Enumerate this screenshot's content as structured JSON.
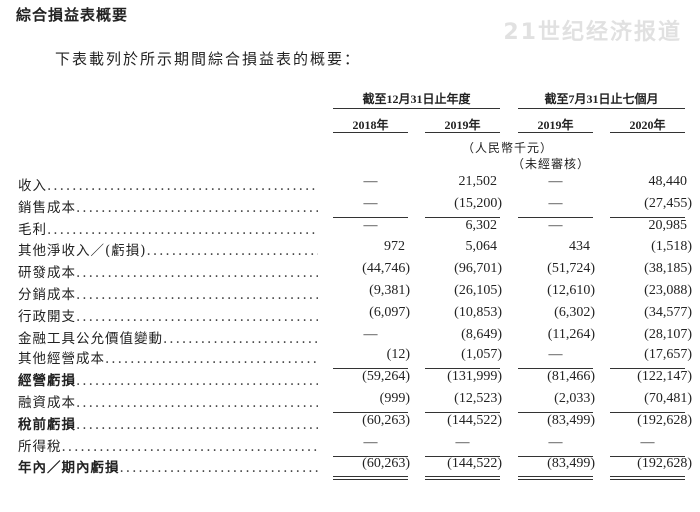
{
  "title": "綜合損益表概要",
  "intro": "下表載列於所示期間綜合損益表的概要：",
  "periods": [
    "截至12月31日止年度",
    "截至7月31日止七個月"
  ],
  "years": [
    "2018年",
    "2019年",
    "2019年",
    "2020年"
  ],
  "unit": "（人民幣千元）",
  "unaudited": "（未經審核）",
  "dots": "............................................",
  "rows": [
    {
      "label": "收入",
      "values": [
        "—",
        "21,502",
        "—",
        "48,440"
      ],
      "bold": false,
      "rule": "none"
    },
    {
      "label": "銷售成本",
      "values": [
        "—",
        "(15,200)",
        "—",
        "(27,455)"
      ],
      "bold": false,
      "rule": "single"
    },
    {
      "label": "毛利",
      "values": [
        "—",
        "6,302",
        "—",
        "20,985"
      ],
      "bold": false,
      "rule": "none"
    },
    {
      "label": "其他淨收入／(虧損)",
      "values": [
        "972",
        "5,064",
        "434",
        "(1,518)"
      ],
      "bold": false,
      "rule": "none"
    },
    {
      "label": "研發成本",
      "values": [
        "(44,746)",
        "(96,701)",
        "(51,724)",
        "(38,185)"
      ],
      "bold": false,
      "rule": "none"
    },
    {
      "label": "分銷成本",
      "values": [
        "(9,381)",
        "(26,105)",
        "(12,610)",
        "(23,088)"
      ],
      "bold": false,
      "rule": "none"
    },
    {
      "label": "行政開支",
      "values": [
        "(6,097)",
        "(10,853)",
        "(6,302)",
        "(34,577)"
      ],
      "bold": false,
      "rule": "none"
    },
    {
      "label": "金融工具公允價值變動",
      "values": [
        "—",
        "(8,649)",
        "(11,264)",
        "(28,107)"
      ],
      "bold": false,
      "rule": "none"
    },
    {
      "label": "其他經營成本",
      "values": [
        "(12)",
        "(1,057)",
        "—",
        "(17,657)"
      ],
      "bold": false,
      "rule": "single"
    },
    {
      "label": "經營虧損",
      "values": [
        "(59,264)",
        "(131,999)",
        "(81,466)",
        "(122,147)"
      ],
      "bold": true,
      "rule": "none"
    },
    {
      "label": "融資成本",
      "values": [
        "(999)",
        "(12,523)",
        "(2,033)",
        "(70,481)"
      ],
      "bold": false,
      "rule": "single"
    },
    {
      "label": "稅前虧損",
      "values": [
        "(60,263)",
        "(144,522)",
        "(83,499)",
        "(192,628)"
      ],
      "bold": true,
      "rule": "none"
    },
    {
      "label": "所得稅",
      "values": [
        "—",
        "—",
        "—",
        "—"
      ],
      "bold": false,
      "rule": "single"
    },
    {
      "label": "年內／期內虧損",
      "values": [
        "(60,263)",
        "(144,522)",
        "(83,499)",
        "(192,628)"
      ],
      "bold": true,
      "rule": "double"
    }
  ],
  "watermark": "21世纪经济报道"
}
